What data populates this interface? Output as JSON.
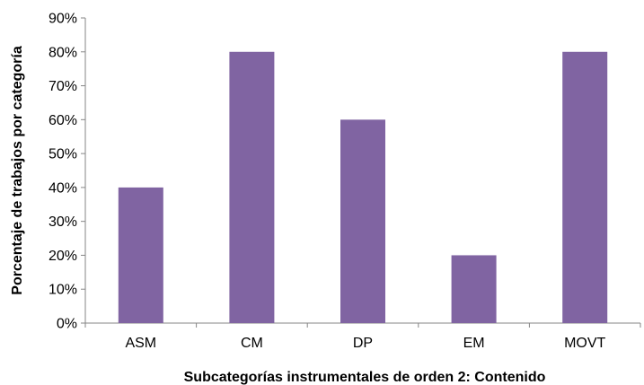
{
  "chart_data": {
    "type": "bar",
    "categories": [
      "ASM",
      "CM",
      "DP",
      "EM",
      "MOVT"
    ],
    "values": [
      40,
      80,
      60,
      20,
      80
    ],
    "xlabel": "Subcategorías instrumentales de orden 2: Contenido",
    "ylabel": "Porcentaje de trabajos por categoría",
    "ylim": [
      0,
      90
    ],
    "yticks": [
      "0%",
      "10%",
      "20%",
      "30%",
      "40%",
      "50%",
      "60%",
      "70%",
      "80%",
      "90%"
    ],
    "grid": false,
    "legend": "none",
    "bar_color": "#8064A2",
    "axis_color": "#868686"
  }
}
